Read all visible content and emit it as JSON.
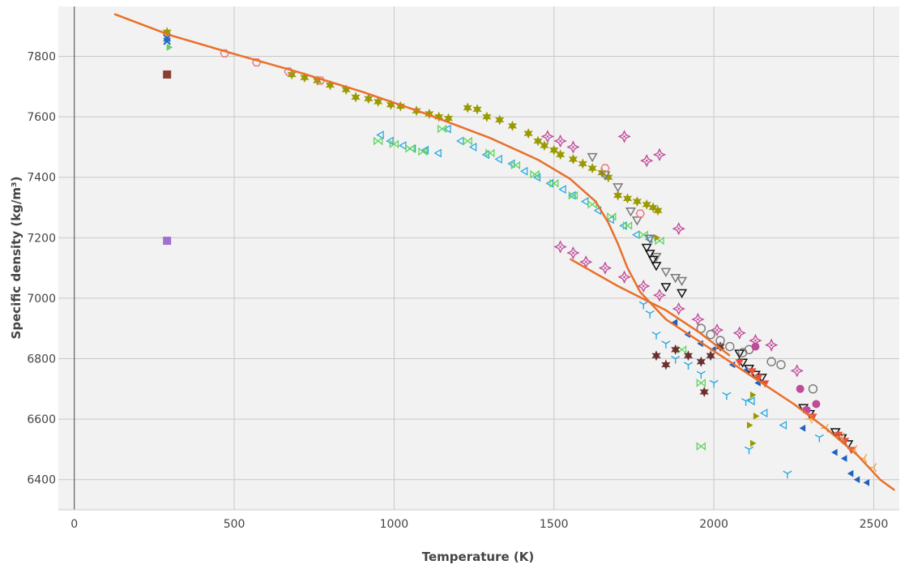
{
  "chart_data": {
    "type": "scatter",
    "title": "",
    "xlabel": "Temperature (K)",
    "ylabel": "Specific density (kg/m³)",
    "xlim": [
      -50,
      2580
    ],
    "ylim": [
      6300,
      7965
    ],
    "xticks": [
      0,
      500,
      1000,
      1500,
      2000,
      2500
    ],
    "yticks": [
      6400,
      6600,
      6800,
      7000,
      7200,
      7400,
      7600,
      7800
    ],
    "grid": true,
    "background": "#f2f2f2",
    "legend": "none",
    "series": [
      {
        "marker": "line",
        "color": "#e8702a",
        "points": [
          [
            125,
            7940
          ],
          [
            300,
            7870
          ],
          [
            500,
            7808
          ],
          [
            700,
            7748
          ],
          [
            900,
            7683
          ],
          [
            1100,
            7610
          ],
          [
            1300,
            7530
          ],
          [
            1450,
            7458
          ],
          [
            1550,
            7395
          ],
          [
            1630,
            7320
          ],
          [
            1670,
            7250
          ],
          [
            1700,
            7180
          ],
          [
            1730,
            7100
          ],
          [
            1770,
            7020
          ],
          [
            1850,
            6930
          ],
          [
            1950,
            6860
          ],
          [
            2050,
            6790
          ],
          [
            2150,
            6720
          ],
          [
            2250,
            6650
          ],
          [
            2350,
            6570
          ],
          [
            2450,
            6480
          ],
          [
            2520,
            6400
          ],
          [
            2565,
            6365
          ]
        ]
      },
      {
        "marker": "line",
        "color": "#e8702a",
        "points": [
          [
            1550,
            7130
          ],
          [
            1700,
            7040
          ],
          [
            1850,
            6960
          ],
          [
            1950,
            6890
          ],
          [
            2050,
            6810
          ]
        ]
      },
      {
        "marker": "star",
        "color": "#9a9a00",
        "points": [
          [
            290,
            7880
          ],
          [
            680,
            7740
          ],
          [
            720,
            7730
          ],
          [
            760,
            7720
          ],
          [
            800,
            7705
          ],
          [
            850,
            7690
          ],
          [
            880,
            7665
          ],
          [
            920,
            7660
          ],
          [
            950,
            7650
          ],
          [
            990,
            7640
          ],
          [
            1020,
            7635
          ],
          [
            1070,
            7620
          ],
          [
            1110,
            7610
          ],
          [
            1140,
            7600
          ],
          [
            1170,
            7595
          ],
          [
            1230,
            7630
          ],
          [
            1260,
            7625
          ],
          [
            1290,
            7600
          ],
          [
            1330,
            7590
          ],
          [
            1370,
            7570
          ],
          [
            1420,
            7545
          ],
          [
            1450,
            7520
          ],
          [
            1470,
            7505
          ],
          [
            1500,
            7490
          ],
          [
            1520,
            7475
          ],
          [
            1560,
            7460
          ],
          [
            1590,
            7445
          ],
          [
            1620,
            7430
          ],
          [
            1650,
            7415
          ],
          [
            1670,
            7400
          ],
          [
            1700,
            7340
          ],
          [
            1730,
            7330
          ],
          [
            1760,
            7320
          ],
          [
            1790,
            7310
          ],
          [
            1810,
            7300
          ],
          [
            1825,
            7290
          ]
        ]
      },
      {
        "marker": "diamond-star",
        "color": "#c04a9a",
        "points": [
          [
            1480,
            7535
          ],
          [
            1520,
            7520
          ],
          [
            1560,
            7500
          ],
          [
            1720,
            7535
          ],
          [
            1790,
            7455
          ],
          [
            1830,
            7475
          ],
          [
            1890,
            7230
          ],
          [
            1520,
            7170
          ],
          [
            1560,
            7150
          ],
          [
            1600,
            7120
          ],
          [
            1660,
            7100
          ],
          [
            1720,
            7070
          ],
          [
            1780,
            7040
          ],
          [
            1830,
            7010
          ],
          [
            1890,
            6965
          ],
          [
            1950,
            6930
          ],
          [
            2010,
            6895
          ],
          [
            2080,
            6885
          ],
          [
            2130,
            6860
          ],
          [
            2180,
            6845
          ],
          [
            2260,
            6760
          ]
        ]
      },
      {
        "marker": "triangle-left-open",
        "color": "#29a8e0",
        "points": [
          [
            960,
            7540
          ],
          [
            990,
            7520
          ],
          [
            1030,
            7505
          ],
          [
            1060,
            7495
          ],
          [
            1100,
            7490
          ],
          [
            1140,
            7480
          ],
          [
            1170,
            7560
          ],
          [
            1210,
            7520
          ],
          [
            1250,
            7500
          ],
          [
            1290,
            7475
          ],
          [
            1330,
            7460
          ],
          [
            1370,
            7445
          ],
          [
            1410,
            7420
          ],
          [
            1450,
            7400
          ],
          [
            1490,
            7380
          ],
          [
            1530,
            7360
          ],
          [
            1560,
            7340
          ],
          [
            1600,
            7320
          ],
          [
            1640,
            7290
          ],
          [
            1680,
            7260
          ],
          [
            1720,
            7240
          ],
          [
            1760,
            7210
          ],
          [
            1800,
            7195
          ]
        ]
      },
      {
        "marker": "bowtie-open",
        "color": "#5ed45e",
        "points": [
          [
            950,
            7520
          ],
          [
            1000,
            7510
          ],
          [
            1050,
            7495
          ],
          [
            1090,
            7485
          ],
          [
            1150,
            7560
          ],
          [
            1230,
            7520
          ],
          [
            1300,
            7480
          ],
          [
            1380,
            7440
          ],
          [
            1440,
            7410
          ],
          [
            1500,
            7380
          ],
          [
            1560,
            7340
          ],
          [
            1620,
            7310
          ],
          [
            1680,
            7270
          ],
          [
            1730,
            7240
          ],
          [
            1780,
            7210
          ],
          [
            1830,
            7190
          ],
          [
            1900,
            6830
          ],
          [
            1960,
            6720
          ],
          [
            1960,
            6510
          ]
        ]
      },
      {
        "marker": "triangle-down-open",
        "color": "#777777",
        "points": [
          [
            1620,
            7470
          ],
          [
            1660,
            7410
          ],
          [
            1700,
            7370
          ],
          [
            1740,
            7290
          ],
          [
            1760,
            7260
          ],
          [
            1800,
            7200
          ],
          [
            1820,
            7140
          ],
          [
            1850,
            7090
          ],
          [
            1880,
            7070
          ],
          [
            1900,
            7060
          ]
        ]
      },
      {
        "marker": "triangle-down-open",
        "color": "#111111",
        "points": [
          [
            1790,
            7170
          ],
          [
            1800,
            7150
          ],
          [
            1810,
            7130
          ],
          [
            1820,
            7110
          ],
          [
            1850,
            7040
          ],
          [
            1900,
            7020
          ],
          [
            2080,
            6820
          ],
          [
            2090,
            6790
          ],
          [
            2110,
            6770
          ],
          [
            2130,
            6750
          ],
          [
            2150,
            6740
          ],
          [
            2280,
            6640
          ],
          [
            2300,
            6620
          ],
          [
            2380,
            6560
          ],
          [
            2400,
            6540
          ],
          [
            2420,
            6520
          ]
        ]
      },
      {
        "marker": "triangle-down",
        "color": "#e8503a",
        "points": [
          [
            2080,
            6790
          ],
          [
            2120,
            6760
          ],
          [
            2140,
            6740
          ],
          [
            2160,
            6720
          ],
          [
            2290,
            6630
          ],
          [
            2310,
            6610
          ],
          [
            2390,
            6550
          ],
          [
            2410,
            6530
          ],
          [
            2430,
            6500
          ]
        ]
      },
      {
        "marker": "tri-up",
        "color": "#29a8e0",
        "points": [
          [
            1780,
            6980
          ],
          [
            1800,
            6950
          ],
          [
            1820,
            6880
          ],
          [
            1850,
            6850
          ],
          [
            1880,
            6800
          ],
          [
            1920,
            6780
          ],
          [
            1960,
            6750
          ],
          [
            2000,
            6720
          ],
          [
            2040,
            6680
          ],
          [
            2100,
            6660
          ],
          [
            2110,
            6500
          ],
          [
            2230,
            6420
          ],
          [
            2330,
            6540
          ]
        ]
      },
      {
        "marker": "star",
        "color": "#6b2f2f",
        "points": [
          [
            1820,
            6810
          ],
          [
            1850,
            6780
          ],
          [
            1880,
            6830
          ],
          [
            1920,
            6810
          ],
          [
            1960,
            6790
          ],
          [
            1990,
            6810
          ],
          [
            2020,
            6840
          ],
          [
            1970,
            6690
          ]
        ]
      },
      {
        "marker": "circle-open",
        "color": "#777777",
        "points": [
          [
            1960,
            6900
          ],
          [
            1990,
            6880
          ],
          [
            2020,
            6860
          ],
          [
            2050,
            6840
          ],
          [
            2090,
            6820
          ],
          [
            2110,
            6830
          ],
          [
            2180,
            6790
          ],
          [
            2210,
            6780
          ],
          [
            2310,
            6700
          ]
        ]
      },
      {
        "marker": "circle",
        "color": "#c04a9a",
        "points": [
          [
            2130,
            6840
          ],
          [
            2270,
            6700
          ],
          [
            2320,
            6650
          ],
          [
            2290,
            6630
          ]
        ]
      },
      {
        "marker": "triangle-left",
        "color": "#1f5fbf",
        "points": [
          [
            1880,
            6920
          ],
          [
            1920,
            6880
          ],
          [
            1960,
            6850
          ],
          [
            2000,
            6830
          ],
          [
            2060,
            6780
          ],
          [
            2100,
            6760
          ],
          [
            2140,
            6720
          ],
          [
            2280,
            6570
          ],
          [
            2380,
            6490
          ],
          [
            2410,
            6470
          ],
          [
            2430,
            6420
          ],
          [
            2450,
            6400
          ],
          [
            2480,
            6390
          ]
        ]
      },
      {
        "marker": "triangle-right",
        "color": "#9a9a00",
        "points": [
          [
            1820,
            7200
          ],
          [
            2120,
            6680
          ],
          [
            2130,
            6610
          ],
          [
            2110,
            6580
          ],
          [
            2120,
            6520
          ]
        ]
      },
      {
        "marker": "triangle-left-open",
        "color": "#29a8e0",
        "points": [
          [
            2120,
            6660
          ],
          [
            2160,
            6620
          ],
          [
            2220,
            6580
          ]
        ]
      },
      {
        "marker": "tri-right",
        "color": "#f0a040",
        "points": [
          [
            2300,
            6600
          ],
          [
            2350,
            6570
          ],
          [
            2400,
            6540
          ],
          [
            2440,
            6500
          ],
          [
            2470,
            6470
          ],
          [
            2500,
            6440
          ]
        ]
      },
      {
        "marker": "hexagon-open",
        "color": "#e8707a",
        "points": [
          [
            470,
            7810
          ],
          [
            570,
            7780
          ],
          [
            670,
            7750
          ],
          [
            770,
            7720
          ],
          [
            1660,
            7430
          ],
          [
            1770,
            7280
          ]
        ]
      },
      {
        "marker": "square",
        "color": "#a070d0",
        "points": [
          [
            290,
            7190
          ]
        ]
      },
      {
        "marker": "square",
        "color": "#8a4030",
        "points": [
          [
            290,
            7740
          ]
        ]
      },
      {
        "marker": "x",
        "color": "#1f5fbf",
        "points": [
          [
            290,
            7860
          ],
          [
            290,
            7850
          ]
        ]
      },
      {
        "marker": "triangle-right",
        "color": "#5ed45e",
        "points": [
          [
            295,
            7830
          ]
        ]
      }
    ]
  }
}
